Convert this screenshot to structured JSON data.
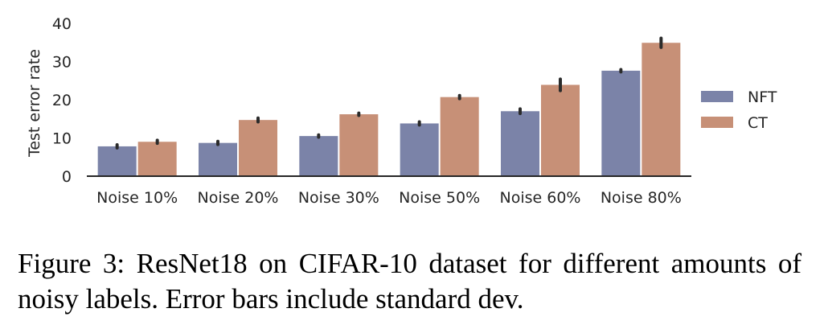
{
  "chart_data": {
    "type": "bar",
    "categories": [
      "Noise 10%",
      "Noise 20%",
      "Noise 30%",
      "Noise 50%",
      "Noise 60%",
      "Noise 80%"
    ],
    "series": [
      {
        "name": "NFT",
        "color": "#7b83a8",
        "values": [
          7.8,
          8.7,
          10.5,
          13.8,
          17.0,
          27.6
        ],
        "err": [
          0.4,
          0.4,
          0.3,
          0.4,
          0.6,
          0.3
        ]
      },
      {
        "name": "CT",
        "color": "#c79077",
        "values": [
          9.0,
          14.7,
          16.2,
          20.7,
          23.9,
          34.9
        ],
        "err": [
          0.4,
          0.5,
          0.3,
          0.4,
          1.5,
          1.2
        ]
      }
    ],
    "xlabel": "",
    "ylabel": "Test error rate",
    "ylim": [
      0,
      40
    ],
    "yticks": [
      0,
      10,
      20,
      30,
      40
    ],
    "grid": false,
    "legend": "right"
  },
  "caption": "Figure 3: ResNet18 on CIFAR-10 dataset for different amounts of noisy labels. Error bars include standard dev."
}
